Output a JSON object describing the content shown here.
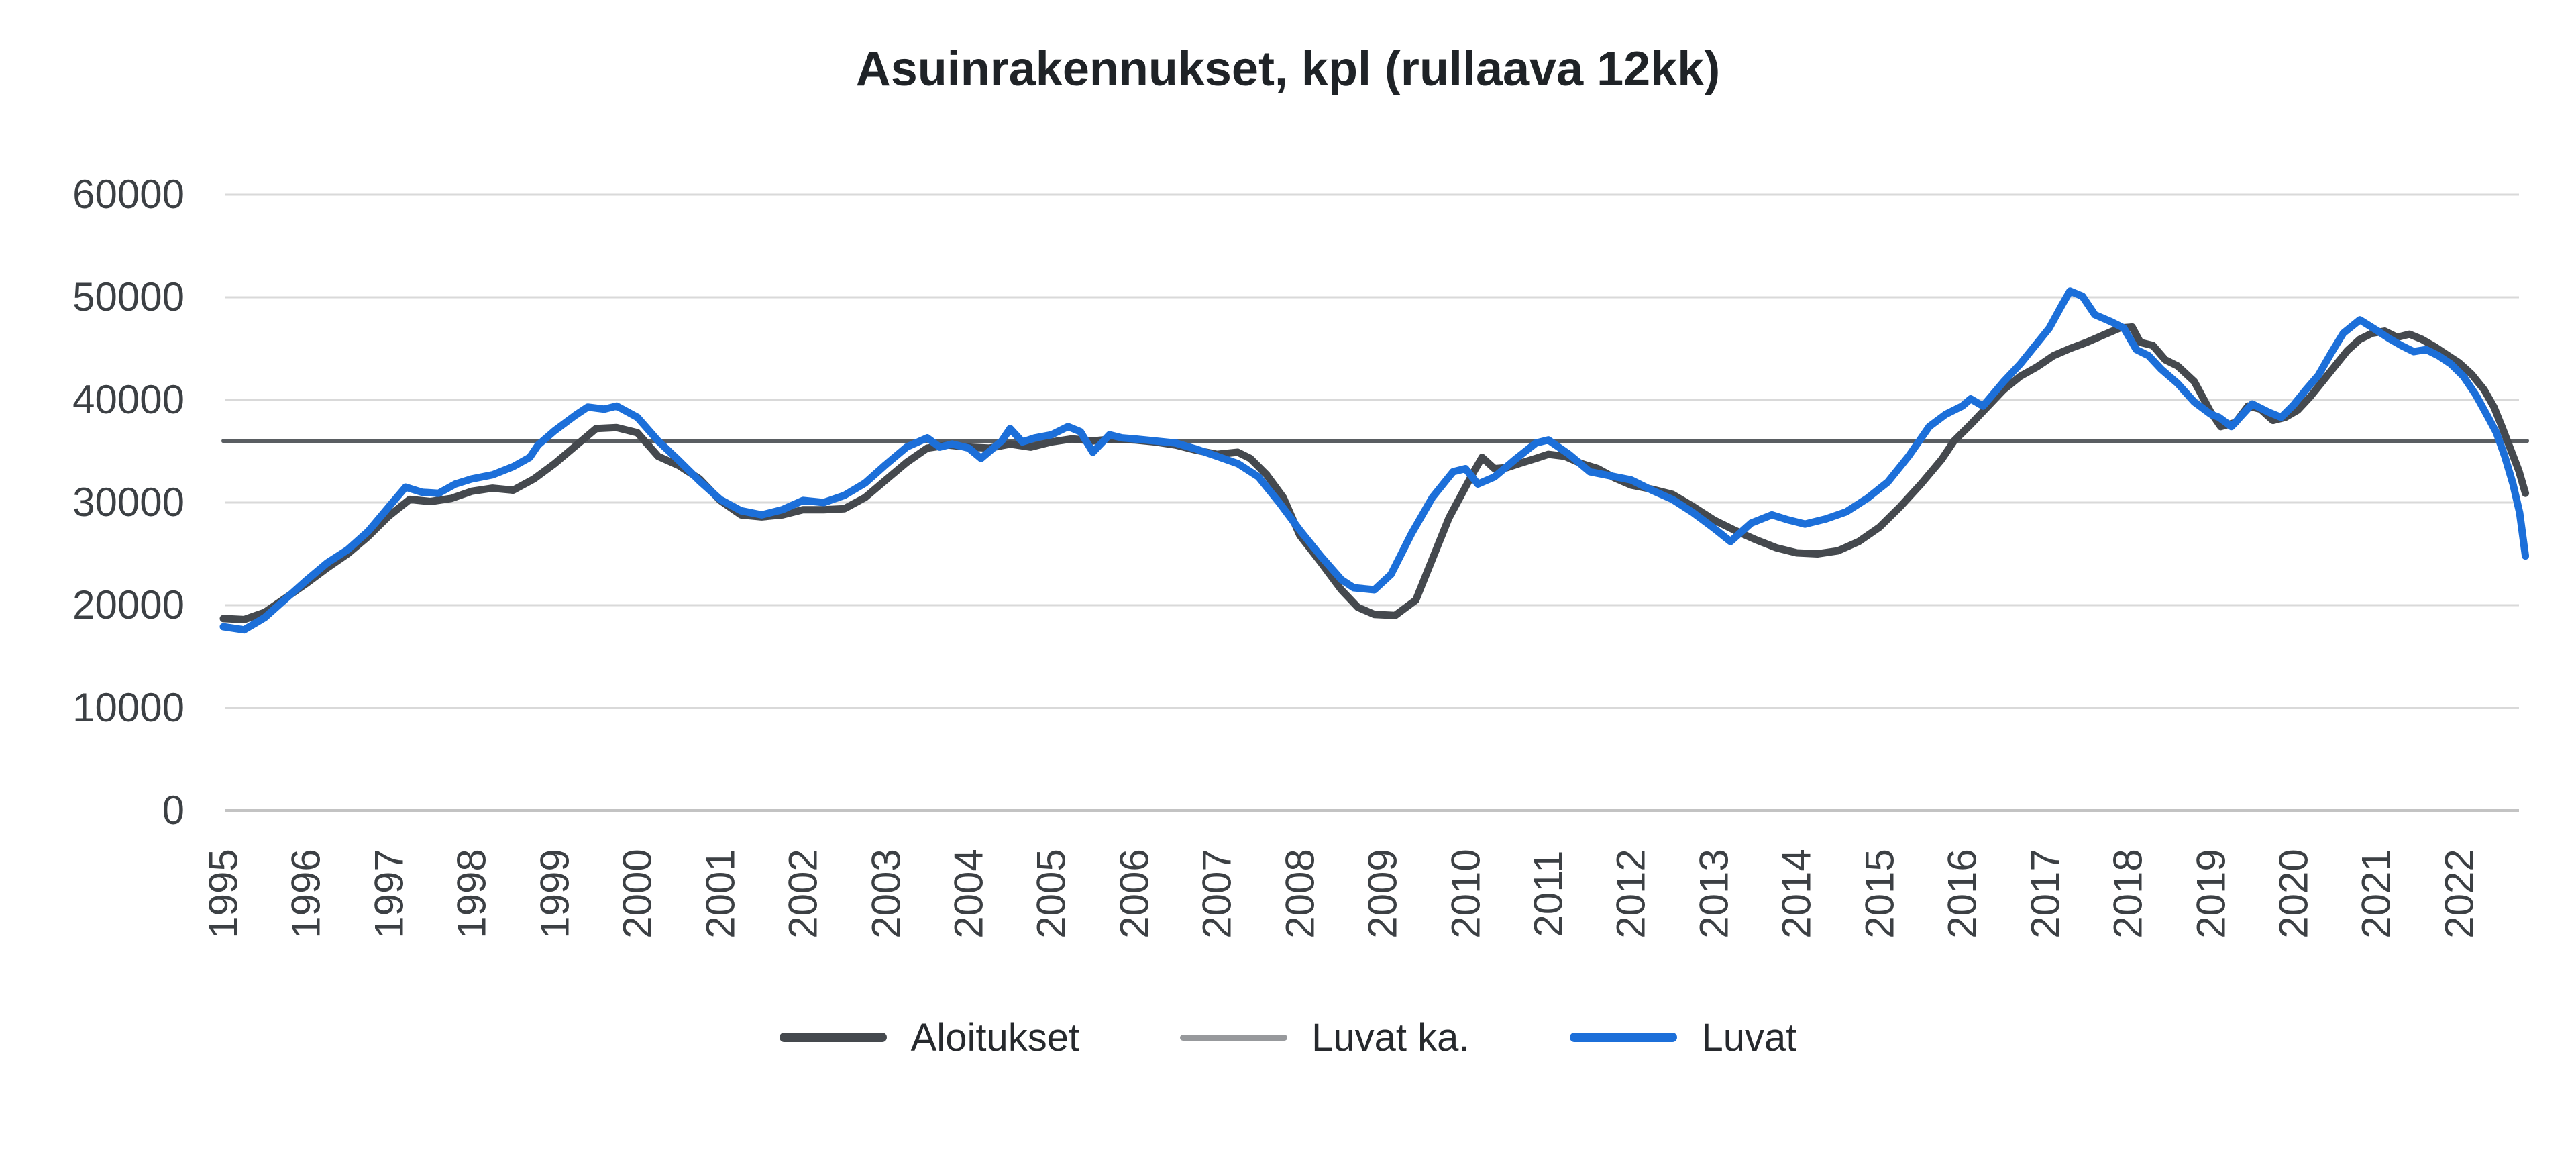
{
  "title": "Asuinrakennukset, kpl (rullaava 12kk)",
  "colors": {
    "aloitukset": "#45494e",
    "luvat": "#1c6fd9",
    "luvat_ka_line": "#5a5e62",
    "luvat_ka_legend": "#97999c",
    "gridline": "#d9d9d9",
    "axis_baseline": "#c3c3c3",
    "text": "#3c4044"
  },
  "legend": {
    "items": [
      {
        "label": "Aloitukset",
        "swatch_color_key": "aloitukset",
        "thin": false
      },
      {
        "label": "Luvat ka.",
        "swatch_color_key": "luvat_ka_legend",
        "thin": true
      },
      {
        "label": "Luvat",
        "swatch_color_key": "luvat",
        "thin": false
      }
    ]
  },
  "chart_data": {
    "type": "line",
    "title": "Asuinrakennukset, kpl (rullaava 12kk)",
    "xlabel": "",
    "ylabel": "",
    "grid": true,
    "legend_position": "bottom",
    "x_axis": {
      "tick_years": [
        1995,
        1996,
        1997,
        1998,
        1999,
        2000,
        2001,
        2002,
        2003,
        2004,
        2005,
        2006,
        2007,
        2008,
        2009,
        2010,
        2011,
        2012,
        2013,
        2014,
        2015,
        2016,
        2017,
        2018,
        2019,
        2020,
        2021,
        2022
      ],
      "min": 1995,
      "max": 2022.85
    },
    "y_axis": {
      "ticks": [
        0,
        10000,
        20000,
        30000,
        40000,
        50000,
        60000
      ],
      "min": 0,
      "max": 60000
    },
    "series": [
      {
        "name": "Luvat ka.",
        "color_key": "luvat_ka_line",
        "width": 6,
        "points": [
          [
            1995.0,
            36000
          ],
          [
            2022.82,
            36000
          ]
        ]
      },
      {
        "name": "Aloitukset",
        "color_key": "aloitukset",
        "width": 11,
        "points": [
          [
            1995.0,
            18700
          ],
          [
            1995.25,
            18600
          ],
          [
            1995.5,
            19300
          ],
          [
            1995.75,
            20700
          ],
          [
            1996.0,
            22100
          ],
          [
            1996.25,
            23600
          ],
          [
            1996.5,
            25000
          ],
          [
            1996.75,
            26700
          ],
          [
            1997.0,
            28700
          ],
          [
            1997.25,
            30300
          ],
          [
            1997.5,
            30100
          ],
          [
            1997.75,
            30400
          ],
          [
            1998.0,
            31100
          ],
          [
            1998.25,
            31400
          ],
          [
            1998.5,
            31200
          ],
          [
            1998.75,
            32300
          ],
          [
            1999.0,
            33800
          ],
          [
            1999.25,
            35500
          ],
          [
            1999.5,
            37200
          ],
          [
            1999.75,
            37300
          ],
          [
            2000.0,
            36800
          ],
          [
            2000.25,
            34500
          ],
          [
            2000.5,
            33600
          ],
          [
            2000.75,
            32300
          ],
          [
            2001.0,
            30200
          ],
          [
            2001.25,
            28800
          ],
          [
            2001.5,
            28600
          ],
          [
            2001.75,
            28800
          ],
          [
            2002.0,
            29300
          ],
          [
            2002.25,
            29300
          ],
          [
            2002.5,
            29400
          ],
          [
            2002.75,
            30500
          ],
          [
            2003.0,
            32200
          ],
          [
            2003.25,
            33900
          ],
          [
            2003.5,
            35300
          ],
          [
            2003.75,
            35600
          ],
          [
            2004.0,
            35400
          ],
          [
            2004.25,
            35300
          ],
          [
            2004.5,
            35700
          ],
          [
            2004.75,
            35400
          ],
          [
            2005.0,
            35900
          ],
          [
            2005.25,
            36200
          ],
          [
            2005.5,
            36000
          ],
          [
            2005.75,
            36200
          ],
          [
            2006.0,
            36100
          ],
          [
            2006.25,
            35900
          ],
          [
            2006.5,
            35600
          ],
          [
            2006.75,
            35100
          ],
          [
            2007.0,
            34700
          ],
          [
            2007.25,
            34900
          ],
          [
            2007.4,
            34300
          ],
          [
            2007.6,
            32700
          ],
          [
            2007.8,
            30500
          ],
          [
            2008.0,
            26800
          ],
          [
            2008.25,
            24200
          ],
          [
            2008.5,
            21500
          ],
          [
            2008.7,
            19800
          ],
          [
            2008.9,
            19100
          ],
          [
            2009.15,
            19000
          ],
          [
            2009.4,
            20500
          ],
          [
            2009.6,
            24500
          ],
          [
            2009.8,
            28500
          ],
          [
            2010.0,
            31500
          ],
          [
            2010.1,
            33000
          ],
          [
            2010.2,
            34400
          ],
          [
            2010.35,
            33300
          ],
          [
            2010.5,
            33400
          ],
          [
            2010.65,
            33800
          ],
          [
            2010.85,
            34300
          ],
          [
            2011.0,
            34700
          ],
          [
            2011.2,
            34500
          ],
          [
            2011.4,
            33800
          ],
          [
            2011.6,
            33300
          ],
          [
            2011.8,
            32400
          ],
          [
            2012.0,
            31700
          ],
          [
            2012.25,
            31300
          ],
          [
            2012.5,
            30800
          ],
          [
            2012.75,
            29600
          ],
          [
            2013.0,
            28300
          ],
          [
            2013.25,
            27300
          ],
          [
            2013.5,
            26400
          ],
          [
            2013.75,
            25600
          ],
          [
            2014.0,
            25100
          ],
          [
            2014.25,
            25000
          ],
          [
            2014.5,
            25300
          ],
          [
            2014.75,
            26200
          ],
          [
            2015.0,
            27600
          ],
          [
            2015.25,
            29600
          ],
          [
            2015.5,
            31800
          ],
          [
            2015.75,
            34200
          ],
          [
            2015.9,
            36000
          ],
          [
            2016.1,
            37600
          ],
          [
            2016.3,
            39300
          ],
          [
            2016.5,
            41000
          ],
          [
            2016.7,
            42300
          ],
          [
            2016.9,
            43200
          ],
          [
            2017.1,
            44300
          ],
          [
            2017.3,
            45000
          ],
          [
            2017.5,
            45600
          ],
          [
            2017.7,
            46300
          ],
          [
            2017.9,
            47000
          ],
          [
            2018.05,
            47100
          ],
          [
            2018.15,
            45600
          ],
          [
            2018.3,
            45300
          ],
          [
            2018.45,
            43900
          ],
          [
            2018.6,
            43300
          ],
          [
            2018.8,
            41800
          ],
          [
            2019.0,
            38800
          ],
          [
            2019.12,
            37400
          ],
          [
            2019.3,
            37800
          ],
          [
            2019.45,
            39400
          ],
          [
            2019.6,
            39100
          ],
          [
            2019.75,
            38000
          ],
          [
            2019.9,
            38300
          ],
          [
            2020.05,
            39000
          ],
          [
            2020.2,
            40300
          ],
          [
            2020.35,
            41800
          ],
          [
            2020.5,
            43300
          ],
          [
            2020.65,
            44800
          ],
          [
            2020.8,
            45900
          ],
          [
            2020.95,
            46500
          ],
          [
            2021.1,
            46700
          ],
          [
            2021.25,
            46100
          ],
          [
            2021.4,
            46400
          ],
          [
            2021.55,
            45900
          ],
          [
            2021.7,
            45200
          ],
          [
            2021.85,
            44400
          ],
          [
            2022.0,
            43600
          ],
          [
            2022.15,
            42500
          ],
          [
            2022.3,
            41000
          ],
          [
            2022.42,
            39300
          ],
          [
            2022.52,
            37300
          ],
          [
            2022.62,
            35200
          ],
          [
            2022.72,
            33100
          ],
          [
            2022.8,
            30900
          ]
        ]
      },
      {
        "name": "Luvat",
        "color_key": "luvat",
        "width": 11,
        "points": [
          [
            1995.0,
            17900
          ],
          [
            1995.25,
            17600
          ],
          [
            1995.5,
            18800
          ],
          [
            1995.75,
            20600
          ],
          [
            1996.0,
            22400
          ],
          [
            1996.25,
            24100
          ],
          [
            1996.5,
            25400
          ],
          [
            1996.75,
            27200
          ],
          [
            1997.0,
            29600
          ],
          [
            1997.2,
            31500
          ],
          [
            1997.4,
            31000
          ],
          [
            1997.6,
            30900
          ],
          [
            1997.8,
            31800
          ],
          [
            1998.0,
            32300
          ],
          [
            1998.25,
            32700
          ],
          [
            1998.5,
            33500
          ],
          [
            1998.7,
            34400
          ],
          [
            1998.8,
            35600
          ],
          [
            1999.0,
            37000
          ],
          [
            1999.25,
            38500
          ],
          [
            1999.4,
            39300
          ],
          [
            1999.6,
            39100
          ],
          [
            1999.75,
            39400
          ],
          [
            2000.0,
            38300
          ],
          [
            2000.25,
            36000
          ],
          [
            2000.5,
            34100
          ],
          [
            2000.75,
            32100
          ],
          [
            2001.0,
            30300
          ],
          [
            2001.25,
            29200
          ],
          [
            2001.5,
            28800
          ],
          [
            2001.75,
            29300
          ],
          [
            2002.0,
            30200
          ],
          [
            2002.25,
            30000
          ],
          [
            2002.5,
            30700
          ],
          [
            2002.75,
            31900
          ],
          [
            2003.0,
            33700
          ],
          [
            2003.25,
            35400
          ],
          [
            2003.5,
            36300
          ],
          [
            2003.65,
            35400
          ],
          [
            2003.8,
            35700
          ],
          [
            2004.0,
            35300
          ],
          [
            2004.15,
            34300
          ],
          [
            2004.4,
            36000
          ],
          [
            2004.5,
            37200
          ],
          [
            2004.65,
            35900
          ],
          [
            2004.8,
            36300
          ],
          [
            2005.0,
            36600
          ],
          [
            2005.2,
            37400
          ],
          [
            2005.35,
            36900
          ],
          [
            2005.5,
            34900
          ],
          [
            2005.7,
            36600
          ],
          [
            2005.85,
            36300
          ],
          [
            2006.0,
            36200
          ],
          [
            2006.25,
            36000
          ],
          [
            2006.5,
            35800
          ],
          [
            2006.75,
            35200
          ],
          [
            2007.0,
            34500
          ],
          [
            2007.25,
            33800
          ],
          [
            2007.5,
            32500
          ],
          [
            2007.75,
            30000
          ],
          [
            2008.0,
            27300
          ],
          [
            2008.25,
            24800
          ],
          [
            2008.5,
            22500
          ],
          [
            2008.65,
            21700
          ],
          [
            2008.9,
            21500
          ],
          [
            2009.1,
            23000
          ],
          [
            2009.35,
            27000
          ],
          [
            2009.6,
            30500
          ],
          [
            2009.85,
            33000
          ],
          [
            2010.0,
            33300
          ],
          [
            2010.15,
            31800
          ],
          [
            2010.35,
            32500
          ],
          [
            2010.6,
            34200
          ],
          [
            2010.85,
            35800
          ],
          [
            2011.0,
            36100
          ],
          [
            2011.25,
            34700
          ],
          [
            2011.5,
            33000
          ],
          [
            2011.75,
            32600
          ],
          [
            2012.0,
            32200
          ],
          [
            2012.25,
            31200
          ],
          [
            2012.5,
            30300
          ],
          [
            2012.75,
            29000
          ],
          [
            2013.0,
            27500
          ],
          [
            2013.2,
            26200
          ],
          [
            2013.45,
            28000
          ],
          [
            2013.7,
            28800
          ],
          [
            2013.9,
            28300
          ],
          [
            2014.1,
            27900
          ],
          [
            2014.35,
            28400
          ],
          [
            2014.6,
            29100
          ],
          [
            2014.85,
            30400
          ],
          [
            2015.1,
            32000
          ],
          [
            2015.35,
            34500
          ],
          [
            2015.6,
            37400
          ],
          [
            2015.8,
            38600
          ],
          [
            2016.0,
            39400
          ],
          [
            2016.1,
            40100
          ],
          [
            2016.25,
            39400
          ],
          [
            2016.5,
            41800
          ],
          [
            2016.7,
            43500
          ],
          [
            2016.9,
            45500
          ],
          [
            2017.05,
            47000
          ],
          [
            2017.2,
            49200
          ],
          [
            2017.3,
            50600
          ],
          [
            2017.45,
            50100
          ],
          [
            2017.6,
            48300
          ],
          [
            2017.8,
            47600
          ],
          [
            2017.95,
            47000
          ],
          [
            2018.1,
            44900
          ],
          [
            2018.25,
            44300
          ],
          [
            2018.4,
            43000
          ],
          [
            2018.6,
            41600
          ],
          [
            2018.8,
            39800
          ],
          [
            2019.0,
            38600
          ],
          [
            2019.1,
            38300
          ],
          [
            2019.25,
            37400
          ],
          [
            2019.5,
            39600
          ],
          [
            2019.7,
            38800
          ],
          [
            2019.85,
            38300
          ],
          [
            2020.0,
            39500
          ],
          [
            2020.15,
            41000
          ],
          [
            2020.3,
            42400
          ],
          [
            2020.45,
            44500
          ],
          [
            2020.6,
            46500
          ],
          [
            2020.8,
            47800
          ],
          [
            2021.0,
            46800
          ],
          [
            2021.15,
            46000
          ],
          [
            2021.3,
            45300
          ],
          [
            2021.45,
            44700
          ],
          [
            2021.6,
            44900
          ],
          [
            2021.75,
            44300
          ],
          [
            2021.9,
            43500
          ],
          [
            2022.05,
            42300
          ],
          [
            2022.2,
            40500
          ],
          [
            2022.35,
            38300
          ],
          [
            2022.45,
            36800
          ],
          [
            2022.55,
            34500
          ],
          [
            2022.65,
            31800
          ],
          [
            2022.73,
            29000
          ],
          [
            2022.8,
            24800
          ]
        ]
      }
    ]
  }
}
